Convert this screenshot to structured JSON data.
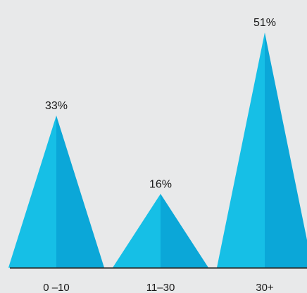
{
  "chart_data": {
    "type": "bar",
    "mark": "triangle",
    "categories": [
      "0 –10",
      "11–30",
      "30+"
    ],
    "values": [
      33,
      16,
      51
    ],
    "value_labels": [
      "33%",
      "16%",
      "51%"
    ],
    "unit": "%",
    "ylim": [
      0,
      55
    ],
    "grid": false,
    "legend": "none",
    "colors": {
      "left_face": "#16bfe6",
      "right_face": "#0ba7d8",
      "baseline": "#2a2a2a",
      "background": "#e8e9ea",
      "text": "#1a1a1a"
    }
  }
}
